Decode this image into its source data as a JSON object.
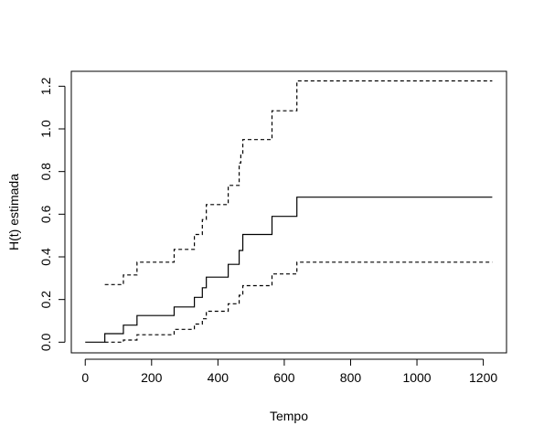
{
  "chart_data": {
    "type": "line",
    "step": true,
    "title": "",
    "xlabel": "Tempo",
    "ylabel": "H(t) estimada",
    "xlim": [
      -42,
      1270
    ],
    "ylim": [
      -0.05,
      1.27
    ],
    "x_ticks": [
      0,
      200,
      400,
      600,
      800,
      1000,
      1200
    ],
    "x_tick_labels": [
      "0",
      "200",
      "400",
      "600",
      "800",
      "1000",
      "1200"
    ],
    "y_ticks": [
      0.0,
      0.2,
      0.4,
      0.6,
      0.8,
      1.0,
      1.2
    ],
    "y_tick_labels": [
      "0.0",
      "0.2",
      "0.4",
      "0.6",
      "0.8",
      "1.0",
      "1.2"
    ],
    "grid": false,
    "legend": "none",
    "series": [
      {
        "line_style": "solid",
        "x": [
          0,
          59,
          115,
          156,
          268,
          329,
          353,
          365,
          431,
          464,
          475,
          563,
          638,
          1227
        ],
        "y": [
          0.0,
          0.04,
          0.08,
          0.125,
          0.165,
          0.21,
          0.255,
          0.305,
          0.365,
          0.43,
          0.505,
          0.59,
          0.68,
          0.68
        ]
      },
      {
        "line_style": "dashed",
        "x": [
          59,
          115,
          156,
          268,
          329,
          353,
          365,
          431,
          464,
          469,
          475,
          563,
          638,
          1227
        ],
        "y": [
          0.27,
          0.315,
          0.375,
          0.435,
          0.505,
          0.575,
          0.645,
          0.735,
          0.84,
          0.88,
          0.95,
          1.085,
          1.225,
          1.225
        ]
      },
      {
        "line_style": "dashed",
        "x": [
          59,
          115,
          156,
          268,
          329,
          353,
          365,
          431,
          464,
          475,
          563,
          638,
          1227
        ],
        "y": [
          0.0,
          0.01,
          0.035,
          0.06,
          0.085,
          0.11,
          0.145,
          0.18,
          0.22,
          0.265,
          0.32,
          0.375,
          0.375
        ]
      }
    ]
  }
}
